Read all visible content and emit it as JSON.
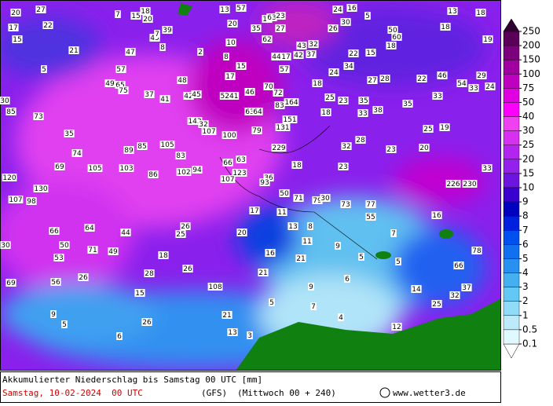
{
  "caption": {
    "title": "Akkumulierter Niederschlag bis Samstag 00 UTC [mm]",
    "date": "Samstag, 10-02-2024  00 UTC",
    "model": "(GFS)",
    "run": "(Mittwoch 00 + 240)",
    "source": "www.wetter3.de"
  },
  "legend": {
    "levels": [
      250,
      200,
      150,
      100,
      75,
      50,
      40,
      30,
      25,
      20,
      15,
      10,
      9,
      8,
      7,
      6,
      5,
      4,
      3,
      2,
      1,
      0.5,
      0.1
    ],
    "colors": [
      "#5a0058",
      "#7c007c",
      "#a000a0",
      "#c000c0",
      "#e000e0",
      "#ff00ff",
      "#f040f0",
      "#d830f0",
      "#b424f0",
      "#9420ec",
      "#6c14e0",
      "#3a00d0",
      "#0000c0",
      "#0020e0",
      "#0050f0",
      "#1070f0",
      "#2890f0",
      "#44b0f0",
      "#64c8f4",
      "#90dcf8",
      "#bceaf8",
      "#e0f8ff"
    ]
  },
  "labels": [
    20,
    27,
    7,
    15,
    18,
    20,
    13,
    57,
    24,
    16,
    5,
    13,
    18,
    17,
    22,
    39,
    45,
    8,
    7,
    20,
    35,
    15,
    63,
    23,
    27,
    26,
    30,
    50,
    60,
    18,
    19,
    15,
    10,
    62,
    43,
    32,
    44,
    17,
    42,
    37,
    22,
    15,
    18,
    21,
    47,
    2,
    8,
    5,
    57,
    15,
    57,
    34,
    24,
    17,
    48,
    49,
    65,
    75,
    18,
    27,
    28,
    22,
    46,
    54,
    33,
    29,
    24,
    70,
    72,
    37,
    41,
    42,
    45,
    5241,
    46,
    25,
    23,
    35,
    35,
    33,
    30,
    85,
    83,
    164,
    63,
    64,
    18,
    33,
    38,
    73,
    143,
    32,
    107,
    151,
    100,
    79,
    131,
    25,
    19,
    35,
    28,
    105,
    85,
    89,
    229,
    32,
    23,
    20,
    74,
    83,
    66,
    63,
    18,
    69,
    105,
    103,
    86,
    102,
    94,
    123,
    23,
    33,
    120,
    107,
    36,
    93,
    130,
    226,
    230,
    107,
    98,
    50,
    71,
    79,
    30,
    73,
    77,
    55,
    16,
    17,
    11,
    26,
    25,
    66,
    64,
    44,
    20,
    13,
    8,
    11,
    30,
    50,
    71,
    49,
    18,
    16,
    53,
    21,
    7,
    9,
    5,
    5,
    78,
    28,
    26,
    21,
    66,
    69,
    56,
    26,
    6,
    108,
    9,
    14,
    37,
    32,
    25,
    15,
    5,
    7,
    9,
    5,
    21,
    26,
    4,
    12,
    6,
    13,
    3
  ]
}
